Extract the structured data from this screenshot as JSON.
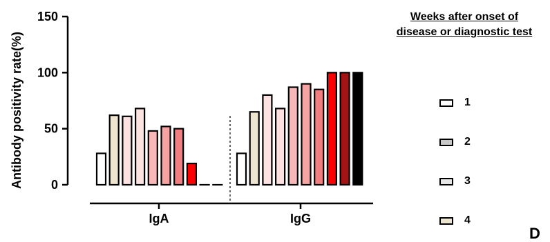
{
  "chart_data": {
    "type": "bar",
    "ylabel": "Antibody positivity rate(%)",
    "xlabel": "",
    "ylim": [
      0,
      150
    ],
    "yticks": [
      "0",
      "50",
      "100",
      "150"
    ],
    "groups": [
      {
        "name": "IgA",
        "values": [
          28,
          62,
          61,
          68,
          48,
          52,
          50,
          19,
          0,
          0
        ],
        "colors": [
          "#ffffff",
          "#ede5cf",
          "#fde2e2",
          "#fde2e2",
          "#f9b8b8",
          "#f6a3a3",
          "#f27f7f",
          "#ff0000",
          "#ffffff",
          "#ffffff"
        ]
      },
      {
        "name": "IgG",
        "values": [
          28,
          65,
          80,
          68,
          87,
          90,
          85,
          100,
          100,
          100
        ],
        "colors": [
          "#ffffff",
          "#ede5cf",
          "#fde2e2",
          "#fde2e2",
          "#f9b8b8",
          "#f6a3a3",
          "#f27f7f",
          "#ff0000",
          "#a31515",
          "#000000"
        ]
      }
    ],
    "grid": false,
    "legend_position": "right"
  },
  "legend": {
    "title_line1": "Weeks after onset of",
    "title_line2": "disease or diagnostic test",
    "items": [
      {
        "label": "1",
        "color": "#ffffff"
      },
      {
        "label": "2",
        "color": "#c8c8c8"
      },
      {
        "label": "3",
        "color": "#e6e6e6"
      },
      {
        "label": "4",
        "color": "#ede5cf"
      }
    ]
  },
  "panel_letter": "D"
}
